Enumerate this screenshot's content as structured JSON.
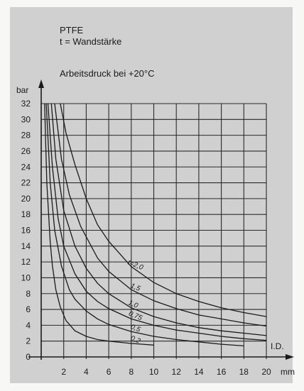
{
  "notes": {
    "material": "PTFE",
    "wall": "t = Wandstärke",
    "condition": "Arbeitsdruck bei +20°C"
  },
  "chart_data": {
    "type": "line",
    "title": "",
    "xlabel": "I.D.",
    "xunit": "mm",
    "ylabel": "bar",
    "xlim": [
      0,
      20
    ],
    "ylim": [
      0,
      32
    ],
    "x_ticks": [
      2,
      4,
      6,
      8,
      10,
      12,
      14,
      16,
      18,
      20
    ],
    "y_ticks": [
      0,
      2,
      4,
      6,
      8,
      10,
      12,
      14,
      16,
      18,
      20,
      22,
      24,
      26,
      28,
      30,
      32
    ],
    "grid": true,
    "series": [
      {
        "name": "t=2,0",
        "x": [
          1.7,
          2.2,
          3,
          4,
          5,
          6,
          8,
          10,
          12,
          14,
          16,
          18,
          20
        ],
        "y": [
          32,
          28.3,
          24.3,
          20,
          16.7,
          14.6,
          11.4,
          9.4,
          8.0,
          7.0,
          6.2,
          5.6,
          5.1
        ]
      },
      {
        "name": "1,5",
        "x": [
          1.2,
          1.8,
          2.5,
          3.5,
          5,
          6,
          8,
          10,
          12,
          14,
          16,
          18,
          20
        ],
        "y": [
          32,
          25,
          20.5,
          16.5,
          12.5,
          10.8,
          8.5,
          7.1,
          6.1,
          5.3,
          4.8,
          4.3,
          3.9
        ]
      },
      {
        "name": "1,0",
        "x": [
          0.9,
          1.3,
          2,
          3,
          4,
          5,
          6,
          8,
          10,
          12,
          14,
          16,
          18,
          20
        ],
        "y": [
          32,
          25,
          18.5,
          14,
          11.2,
          9.3,
          8.0,
          6.2,
          5.1,
          4.3,
          3.7,
          3.3,
          3.0,
          2.7
        ]
      },
      {
        "name": "0,75",
        "x": [
          0.6,
          1,
          1.5,
          2,
          3,
          4,
          5,
          6,
          8,
          10,
          12,
          14,
          16,
          18,
          20
        ],
        "y": [
          32,
          24,
          17.5,
          14,
          10.5,
          8.3,
          7.0,
          6.1,
          4.8,
          4.0,
          3.4,
          3.0,
          2.6,
          2.3,
          2.1
        ]
      },
      {
        "name": "0,5",
        "x": [
          0.45,
          0.8,
          1.2,
          1.8,
          2.5,
          3,
          4,
          5,
          6,
          8,
          10,
          12,
          14,
          16,
          18
        ],
        "y": [
          32,
          22,
          16,
          11.5,
          8.5,
          7.3,
          5.8,
          4.8,
          4.1,
          3.2,
          2.6,
          2.2,
          1.9,
          1.6,
          1.4
        ]
      },
      {
        "name": "0,2",
        "x": [
          0.3,
          0.5,
          0.8,
          1,
          1.3,
          1.7,
          2.2,
          3,
          4,
          5,
          6,
          7,
          8,
          9,
          10
        ],
        "y": [
          32,
          22,
          14.5,
          11.5,
          8.5,
          6.3,
          4.6,
          3.3,
          2.6,
          2.2,
          2.0,
          1.85,
          1.7,
          1.6,
          1.5
        ]
      }
    ],
    "curve_label_prefix": "t="
  }
}
